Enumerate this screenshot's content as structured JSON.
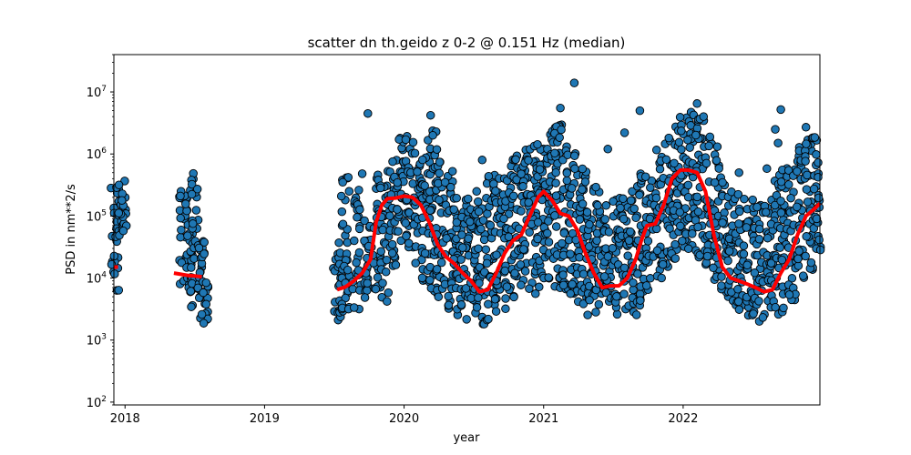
{
  "chart_data": {
    "type": "scatter",
    "title": "scatter dn th.geido z 0-2 @ 0.151 Hz (median)",
    "xlabel": "year",
    "ylabel": "PSD in nm**2/s",
    "xlim": [
      2017.92,
      2022.98
    ],
    "ylim": [
      90,
      40000000
    ],
    "yscale": "log",
    "grid": false,
    "x_ticks": [
      {
        "value": 2018,
        "label": "2018"
      },
      {
        "value": 2019,
        "label": "2019"
      },
      {
        "value": 2020,
        "label": "2020"
      },
      {
        "value": 2021,
        "label": "2021"
      },
      {
        "value": 2022,
        "label": "2022"
      }
    ],
    "y_ticks": [
      {
        "value": 100,
        "base": "10",
        "exp": "2"
      },
      {
        "value": 1000,
        "base": "10",
        "exp": "3"
      },
      {
        "value": 10000,
        "base": "10",
        "exp": "4"
      },
      {
        "value": 100000,
        "base": "10",
        "exp": "5"
      },
      {
        "value": 1000000,
        "base": "10",
        "exp": "6"
      },
      {
        "value": 10000000,
        "base": "10",
        "exp": "7"
      }
    ],
    "colors": {
      "points": "#1f77b4",
      "point_edge": "#000000",
      "median": "#ff0000"
    },
    "scatter_bands": [
      [
        2017.93,
        5000,
        400000
      ],
      [
        2017.98,
        40000,
        500000
      ],
      [
        2018.42,
        8000,
        280000
      ],
      [
        2018.46,
        3000,
        500000
      ],
      [
        2018.5,
        6000,
        300000
      ],
      [
        2018.54,
        4000,
        40000
      ],
      [
        2018.57,
        1800,
        10000
      ],
      [
        2019.52,
        2000,
        50000
      ],
      [
        2019.58,
        2500,
        500000
      ],
      [
        2019.66,
        3000,
        300000
      ],
      [
        2019.74,
        4000,
        150000
      ],
      [
        2019.8,
        6000,
        500000
      ],
      [
        2019.86,
        4000,
        700000
      ],
      [
        2019.92,
        15000,
        800000
      ],
      [
        2019.98,
        40000,
        2000000
      ],
      [
        2020.04,
        30000,
        2200000
      ],
      [
        2020.1,
        15000,
        1500000
      ],
      [
        2020.16,
        8000,
        2000000
      ],
      [
        2020.21,
        5000,
        3000000
      ],
      [
        2020.26,
        4000,
        800000
      ],
      [
        2020.32,
        3000,
        600000
      ],
      [
        2020.38,
        2500,
        300000
      ],
      [
        2020.44,
        2000,
        200000
      ],
      [
        2020.5,
        1800,
        150000
      ],
      [
        2020.56,
        1800,
        200000
      ],
      [
        2020.62,
        2000,
        500000
      ],
      [
        2020.68,
        2500,
        600000
      ],
      [
        2020.74,
        3000,
        800000
      ],
      [
        2020.8,
        4000,
        1000000
      ],
      [
        2020.86,
        5000,
        1300000
      ],
      [
        2020.92,
        5500,
        1500000
      ],
      [
        2020.98,
        7000,
        2000000
      ],
      [
        2021.04,
        8000,
        3000000
      ],
      [
        2021.1,
        6000,
        5000000
      ],
      [
        2021.16,
        5000,
        1500000
      ],
      [
        2021.22,
        3500,
        1300000
      ],
      [
        2021.28,
        3000,
        600000
      ],
      [
        2021.34,
        2500,
        400000
      ],
      [
        2021.4,
        2500,
        300000
      ],
      [
        2021.46,
        2200,
        150000
      ],
      [
        2021.52,
        2000,
        200000
      ],
      [
        2021.58,
        2200,
        200000
      ],
      [
        2021.64,
        2500,
        300000
      ],
      [
        2021.7,
        3000,
        500000
      ],
      [
        2021.76,
        5000,
        600000
      ],
      [
        2021.82,
        10000,
        1500000
      ],
      [
        2021.88,
        15000,
        2000000
      ],
      [
        2021.94,
        20000,
        3000000
      ],
      [
        2022.0,
        30000,
        4000000
      ],
      [
        2022.06,
        25000,
        5000000
      ],
      [
        2022.12,
        20000,
        4500000
      ],
      [
        2022.18,
        15000,
        3000000
      ],
      [
        2022.24,
        8000,
        1500000
      ],
      [
        2022.3,
        5000,
        400000
      ],
      [
        2022.36,
        3500,
        300000
      ],
      [
        2022.42,
        3000,
        250000
      ],
      [
        2022.48,
        2500,
        200000
      ],
      [
        2022.54,
        2000,
        150000
      ],
      [
        2022.6,
        1800,
        200000
      ],
      [
        2022.66,
        2000,
        400000
      ],
      [
        2022.72,
        2500,
        600000
      ],
      [
        2022.78,
        4000,
        600000
      ],
      [
        2022.84,
        8000,
        1500000
      ],
      [
        2022.9,
        12000,
        2000000
      ],
      [
        2022.96,
        20000,
        2200000
      ]
    ],
    "outliers": [
      [
        2021.22,
        14000000
      ],
      [
        2019.74,
        4500000
      ],
      [
        2020.19,
        4200000
      ],
      [
        2021.12,
        5500000
      ],
      [
        2021.69,
        5000000
      ],
      [
        2022.1,
        6500000
      ],
      [
        2022.7,
        5200000
      ],
      [
        2022.88,
        2700000
      ],
      [
        2021.58,
        2200000
      ],
      [
        2022.66,
        2500000
      ],
      [
        2022.68,
        1500000
      ],
      [
        2020.56,
        800000
      ],
      [
        2020.52,
        250000
      ],
      [
        2019.6,
        420000
      ],
      [
        2019.7,
        480000
      ],
      [
        2019.56,
        350000
      ],
      [
        2021.46,
        1200000
      ],
      [
        2022.6,
        580000
      ],
      [
        2022.4,
        500000
      ]
    ],
    "median_series": [
      {
        "x": [
          2017.92,
          2017.95
        ],
        "y": [
          15000,
          15000
        ]
      },
      {
        "x": [
          2018.35,
          2018.4,
          2018.45,
          2018.5,
          2018.55
        ],
        "y": [
          12000,
          11500,
          11000,
          10800,
          10500
        ]
      },
      {
        "x": [
          2019.52,
          2019.58,
          2019.64,
          2019.7,
          2019.76,
          2019.8,
          2019.84,
          2019.88,
          2019.94,
          2020.0,
          2020.06,
          2020.12,
          2020.18,
          2020.24,
          2020.3,
          2020.36,
          2020.42,
          2020.48,
          2020.54,
          2020.6,
          2020.66,
          2020.72,
          2020.78,
          2020.84,
          2020.9,
          2020.96,
          2021.0,
          2021.06,
          2021.12,
          2021.18,
          2021.24,
          2021.3,
          2021.36,
          2021.42,
          2021.48,
          2021.54,
          2021.6,
          2021.66,
          2021.7,
          2021.74,
          2021.8,
          2021.86,
          2021.92,
          2021.98,
          2022.04,
          2022.1,
          2022.16,
          2022.22,
          2022.28,
          2022.34,
          2022.4,
          2022.46,
          2022.52,
          2022.58,
          2022.64,
          2022.7,
          2022.76,
          2022.82,
          2022.88,
          2022.94,
          2022.98
        ],
        "y": [
          6500,
          7200,
          9000,
          12000,
          20000,
          80000,
          150000,
          190000,
          195000,
          210000,
          200000,
          150000,
          80000,
          35000,
          22000,
          17000,
          12000,
          9000,
          6000,
          6500,
          12000,
          25000,
          40000,
          50000,
          100000,
          200000,
          250000,
          180000,
          110000,
          100000,
          60000,
          25000,
          12000,
          7000,
          7500,
          7500,
          10000,
          20000,
          40000,
          70000,
          75000,
          150000,
          400000,
          550000,
          550000,
          500000,
          250000,
          50000,
          15000,
          10000,
          9000,
          8000,
          7000,
          6000,
          6500,
          12000,
          20000,
          50000,
          100000,
          130000,
          160000
        ]
      }
    ]
  }
}
